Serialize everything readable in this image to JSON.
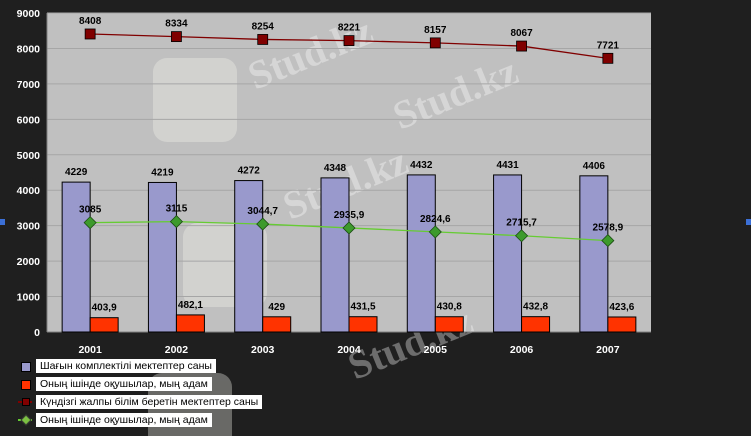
{
  "chart_data": {
    "type": "bar",
    "categories": [
      "2001",
      "2002",
      "2003",
      "2004",
      "2005",
      "2006",
      "2007"
    ],
    "ylim": [
      0,
      9000
    ],
    "yticks": [
      "0",
      "1000",
      "2000",
      "3000",
      "4000",
      "5000",
      "6000",
      "7000",
      "8000",
      "9000"
    ],
    "grid": true,
    "legend_position": "bottom-left",
    "series": [
      {
        "name": "Шағын комплектілі мектептер саны",
        "kind": "bar",
        "color": "#9999cc",
        "values": [
          4229,
          4219,
          4272,
          4348,
          4432,
          4431,
          4406
        ],
        "labels": [
          "4229",
          "4219",
          "4272",
          "4348",
          "4432",
          "4431",
          "4406"
        ]
      },
      {
        "name": "Оның ішінде оқушылар, мың адам",
        "kind": "bar",
        "color": "#ff3300",
        "values": [
          403.9,
          482.1,
          429,
          431.5,
          430.8,
          432.8,
          423.6
        ],
        "labels": [
          "403,9",
          "482,1",
          "429",
          "431,5",
          "430,8",
          "432,8",
          "423,6"
        ]
      },
      {
        "name": "Күндізгі жалпы білім беретін мектептер саны",
        "kind": "line",
        "color": "#800000",
        "marker": "square",
        "values": [
          8408,
          8334,
          8254,
          8221,
          8157,
          8067,
          7721
        ],
        "labels": [
          "8408",
          "8334",
          "8254",
          "8221",
          "8157",
          "8067",
          "7721"
        ]
      },
      {
        "name": "Оның ішінде оқушылар, мың адам",
        "kind": "line",
        "color": "#66cc33",
        "marker": "diamond",
        "values": [
          3085,
          3115,
          3044.7,
          2935.9,
          2824.6,
          2715.7,
          2578.9
        ],
        "labels": [
          "3085",
          "3115",
          "3044,7",
          "2935,9",
          "2824,6",
          "2715,7",
          "2578,9"
        ]
      }
    ]
  },
  "watermark": "Stud.kz",
  "colors": {
    "plot_bg": "#c0c0c0",
    "outer_bg": "#1f1f1f",
    "axis_text": "#ffffff",
    "data_label": "#000000"
  }
}
